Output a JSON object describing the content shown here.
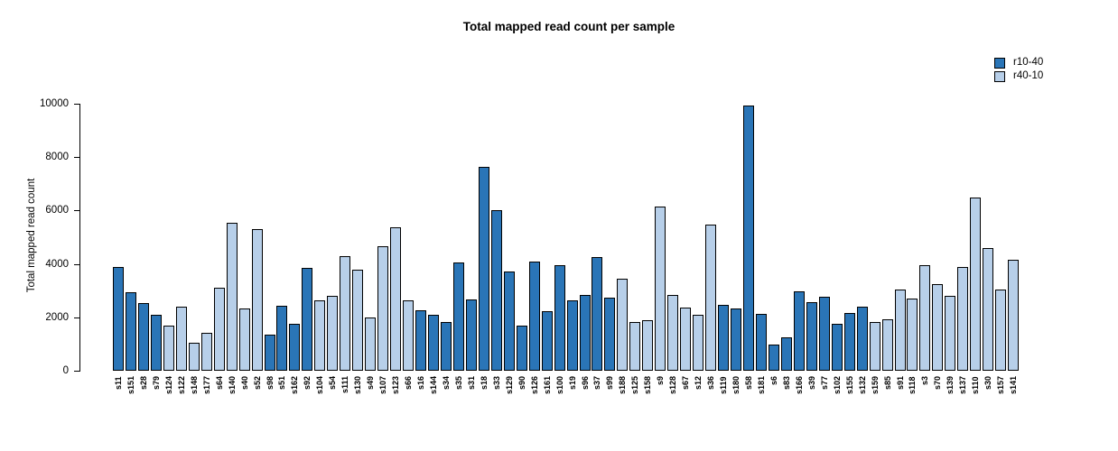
{
  "title": "Total mapped read count per sample",
  "chart_data": {
    "type": "bar",
    "title": "Total mapped read count per sample",
    "xlabel": "",
    "ylabel": "Total mapped read count",
    "ylim": [
      0,
      10000
    ],
    "yticks": [
      0,
      2000,
      4000,
      6000,
      8000,
      10000
    ],
    "grid": false,
    "legend_position": "top-right",
    "series_legend": [
      {
        "name": "r10-40",
        "color": "#2A75B7"
      },
      {
        "name": "r40-10",
        "color": "#B7CFE9"
      }
    ],
    "bar_border_color": "#000000",
    "categories": [
      "s11",
      "s151",
      "s28",
      "s79",
      "s124",
      "s122",
      "s148",
      "s177",
      "s64",
      "s140",
      "s40",
      "s52",
      "s98",
      "s51",
      "s162",
      "s92",
      "s104",
      "s54",
      "s111",
      "s130",
      "s49",
      "s107",
      "s123",
      "s66",
      "s16",
      "s144",
      "s34",
      "s35",
      "s31",
      "s18",
      "s33",
      "s129",
      "s90",
      "s126",
      "s161",
      "s100",
      "s19",
      "s96",
      "s37",
      "s99",
      "s188",
      "s125",
      "s158",
      "s9",
      "s128",
      "s67",
      "s12",
      "s36",
      "s119",
      "s180",
      "s58",
      "s181",
      "s6",
      "s83",
      "s166",
      "s39",
      "s77",
      "s102",
      "s155",
      "s132",
      "s159",
      "s85",
      "s91",
      "s118",
      "s3",
      "s70",
      "s139",
      "s137",
      "s110",
      "s30",
      "s157",
      "s141"
    ],
    "values": [
      3880,
      2950,
      2550,
      2080,
      1700,
      2390,
      1060,
      1410,
      3100,
      5540,
      2320,
      5320,
      1340,
      2430,
      1770,
      3840,
      2640,
      2790,
      4280,
      3800,
      2000,
      4670,
      5370,
      2630,
      2250,
      2080,
      1840,
      4060,
      2660,
      7650,
      6010,
      3700,
      1700,
      4100,
      2230,
      3960,
      2640,
      2830,
      4270,
      2730,
      3440,
      1830,
      1900,
      6150,
      2830,
      2380,
      2110,
      5480,
      2460,
      2330,
      9920,
      2130,
      990,
      1260,
      2960,
      2570,
      2770,
      1740,
      2160,
      2390,
      1830,
      1940,
      3030,
      2700,
      3940,
      3240,
      2800,
      3900,
      6480,
      4580,
      3040,
      4150
    ],
    "series_index": [
      0,
      0,
      0,
      0,
      1,
      1,
      1,
      1,
      1,
      1,
      1,
      1,
      0,
      0,
      0,
      0,
      1,
      1,
      1,
      1,
      1,
      1,
      1,
      1,
      0,
      0,
      0,
      0,
      0,
      0,
      0,
      0,
      0,
      0,
      0,
      0,
      0,
      0,
      0,
      0,
      1,
      1,
      1,
      1,
      1,
      1,
      1,
      1,
      0,
      0,
      0,
      0,
      0,
      0,
      0,
      0,
      0,
      0,
      0,
      0,
      1,
      1,
      1,
      1,
      1,
      1,
      1,
      1,
      1,
      1,
      1,
      1
    ]
  }
}
